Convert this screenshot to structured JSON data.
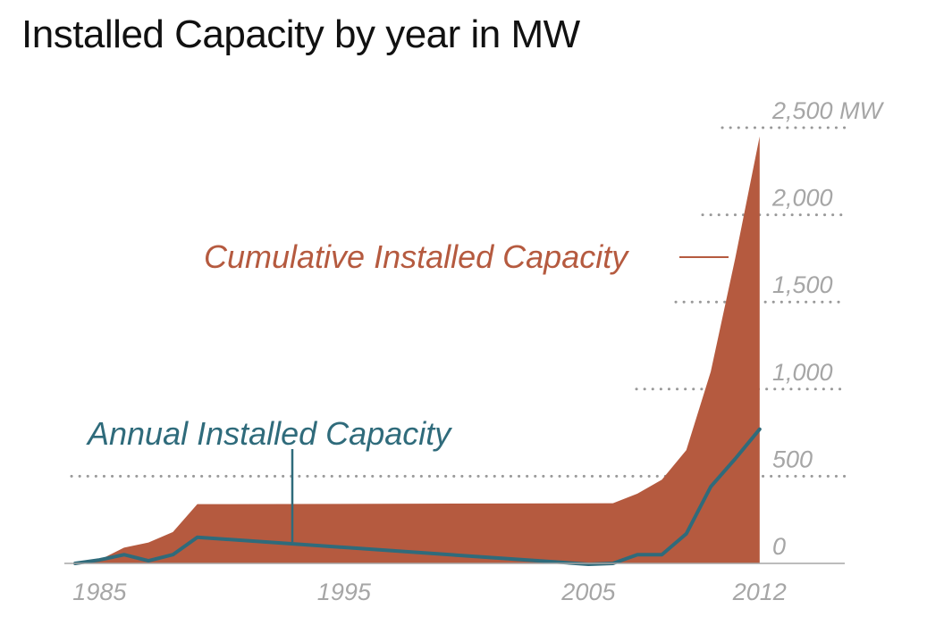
{
  "chart_data": {
    "type": "area",
    "title": "Installed Capacity by year in MW",
    "x_ticks": [
      "1985",
      "1995",
      "2005",
      "2012"
    ],
    "y_ticks": [
      "0",
      "500",
      "1,000",
      "1,500",
      "2,000",
      "2,500 MW"
    ],
    "y_tick_values": [
      0,
      500,
      1000,
      1500,
      2000,
      2500
    ],
    "xlim": [
      1984,
      2016
    ],
    "ylim": [
      0,
      2500
    ],
    "grid": "dotted horizontal at y ticks",
    "series": [
      {
        "name": "Cumulative Installed Capacity",
        "kind": "area",
        "color": "#b55a3f",
        "x": [
          1984,
          1985,
          1986,
          1987,
          1988,
          1989,
          1990,
          2006,
          2007,
          2008,
          2009,
          2010,
          2011,
          2012
        ],
        "values": [
          0,
          20,
          90,
          120,
          180,
          340,
          340,
          345,
          400,
          480,
          650,
          1100,
          1750,
          2450
        ]
      },
      {
        "name": "Annual Installed Capacity",
        "kind": "line",
        "color": "#2f6b7b",
        "x": [
          1984,
          1985,
          1986,
          1987,
          1988,
          1989,
          2005,
          2006,
          2007,
          2008,
          2009,
          2010,
          2011,
          2012
        ],
        "values": [
          0,
          20,
          50,
          15,
          50,
          150,
          -5,
          0,
          50,
          50,
          170,
          440,
          600,
          770
        ]
      }
    ],
    "annotations": {
      "cumulative": "Cumulative Installed Capacity",
      "annual": "Annual Installed Capacity"
    }
  }
}
